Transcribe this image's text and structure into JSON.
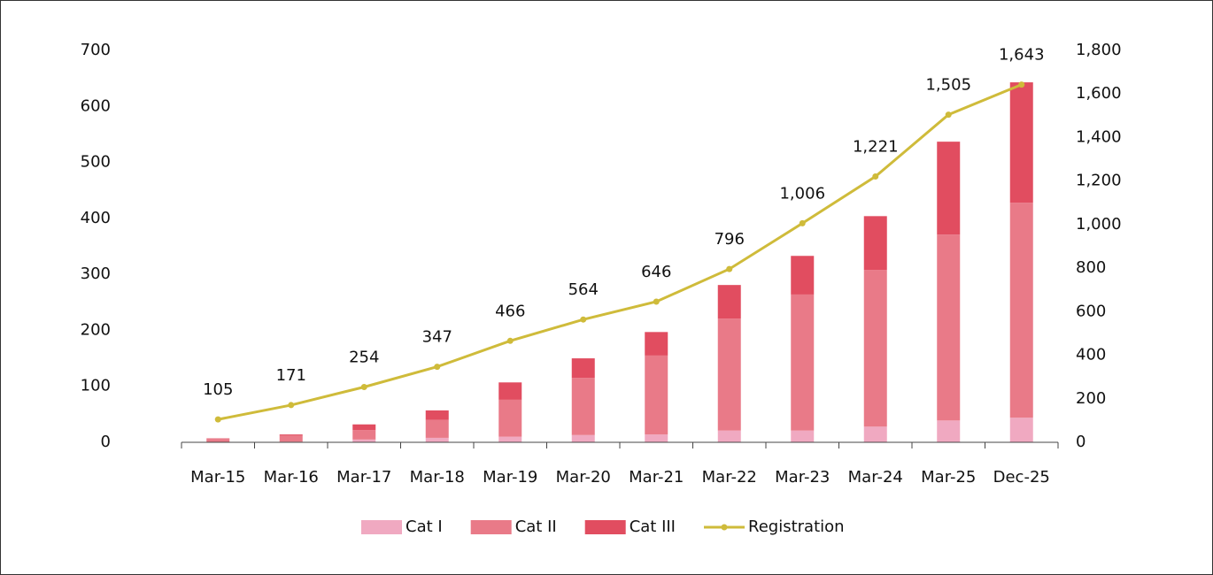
{
  "chart_data": {
    "type": "bar-line",
    "categories": [
      "Mar-15",
      "Mar-16",
      "Mar-17",
      "Mar-18",
      "Mar-19",
      "Mar-20",
      "Mar-21",
      "Mar-22",
      "Mar-23",
      "Mar-24",
      "Mar-25",
      "Dec-25"
    ],
    "series": [
      {
        "name": "Cat I",
        "type": "bar",
        "color": "#f0a9c1",
        "values": [
          0,
          1,
          5,
          8,
          10,
          13,
          14,
          21,
          21,
          28,
          39,
          44
        ]
      },
      {
        "name": "Cat II",
        "type": "bar",
        "color": "#e97a88",
        "values": [
          6,
          11,
          17,
          32,
          66,
          102,
          141,
          200,
          243,
          280,
          332,
          384
        ]
      },
      {
        "name": "Cat III",
        "type": "bar",
        "color": "#e14d60",
        "values": [
          1,
          2,
          10,
          17,
          31,
          35,
          42,
          60,
          69,
          96,
          166,
          215
        ]
      },
      {
        "name": "Registration",
        "type": "line",
        "axis": "y2",
        "color": "#cfbb3a",
        "values": [
          105,
          171,
          254,
          347,
          466,
          564,
          646,
          796,
          1006,
          1221,
          1505,
          1643
        ],
        "value_labels": [
          "105",
          "171",
          "254",
          "347",
          "466",
          "564",
          "646",
          "796",
          "1,006",
          "1,221",
          "1,505",
          "1,643"
        ]
      }
    ],
    "stacked": true,
    "ylim": [
      0,
      700
    ],
    "yticks": [
      0,
      100,
      200,
      300,
      400,
      500,
      600,
      700
    ],
    "y2lim": [
      0,
      1800
    ],
    "y2ticks": [
      0,
      200,
      400,
      600,
      800,
      {
        "value": 1000,
        "label": "1,000"
      },
      {
        "value": 1200,
        "label": "1,200"
      },
      {
        "value": 1400,
        "label": "1,400"
      },
      {
        "value": 1600,
        "label": "1,600"
      },
      {
        "value": 1800,
        "label": "1,800"
      }
    ],
    "legend": "bottom"
  }
}
